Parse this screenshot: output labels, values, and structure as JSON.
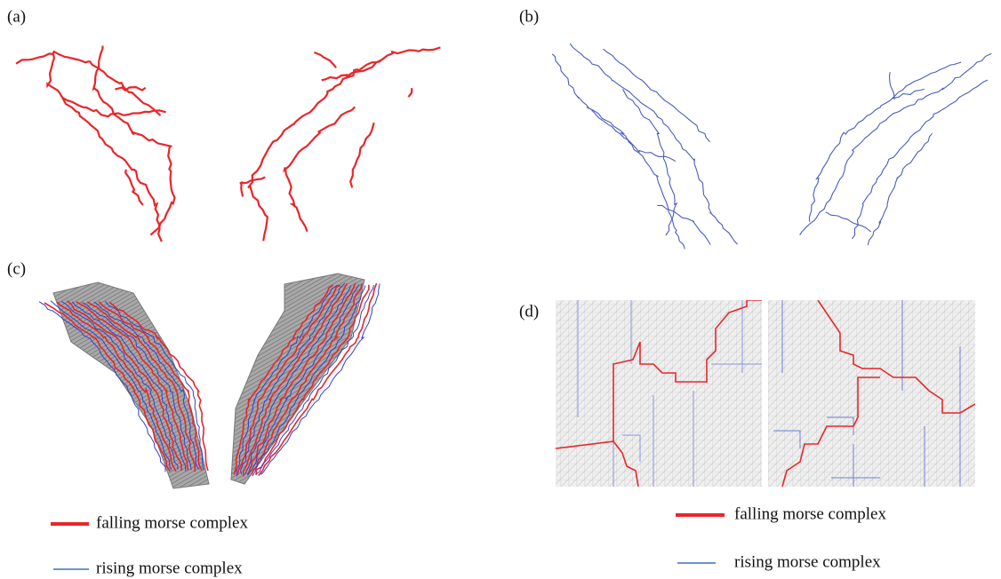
{
  "panels": [
    {
      "label": "(a)"
    },
    {
      "label": "(b)"
    },
    {
      "label": "(c)",
      "legend": [
        "falling morse complex",
        "rising morse complex"
      ]
    },
    {
      "label": "(d)",
      "legend": [
        "falling morse complex",
        "rising morse complex"
      ]
    }
  ]
}
